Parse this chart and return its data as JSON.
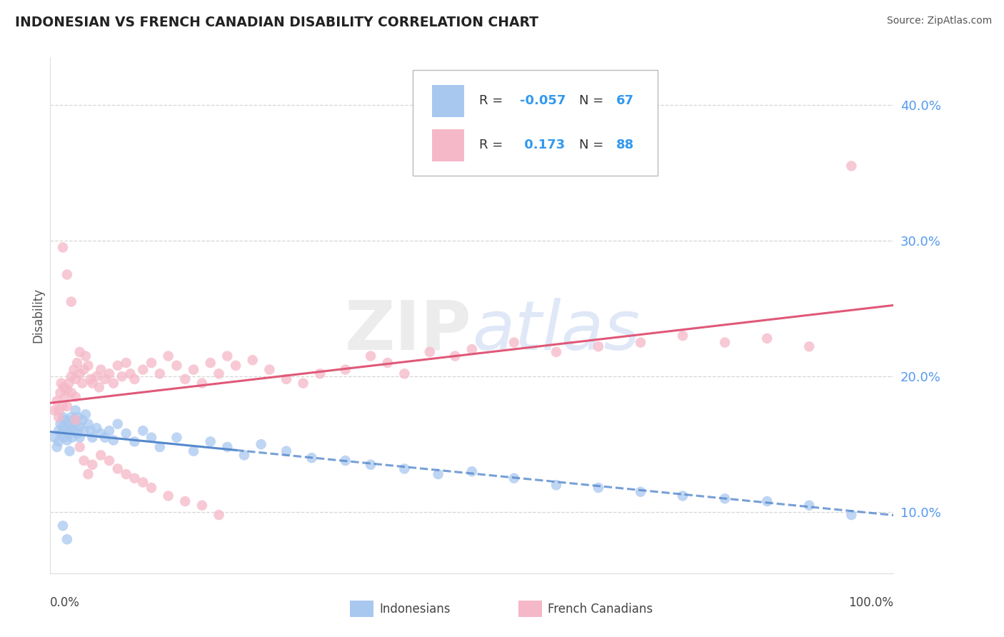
{
  "title": "INDONESIAN VS FRENCH CANADIAN DISABILITY CORRELATION CHART",
  "source": "Source: ZipAtlas.com",
  "ylabel": "Disability",
  "xlim": [
    0.0,
    1.0
  ],
  "ylim": [
    0.055,
    0.435
  ],
  "yticks": [
    0.1,
    0.2,
    0.3,
    0.4
  ],
  "ytick_labels": [
    "10.0%",
    "20.0%",
    "30.0%",
    "40.0%"
  ],
  "blue_color": "#A8C8F0",
  "pink_color": "#F5B8C8",
  "blue_line_color": "#5588CC",
  "pink_line_color": "#E05878",
  "grid_color": "#CCCCCC",
  "ind_x": [
    0.005,
    0.008,
    0.01,
    0.01,
    0.012,
    0.013,
    0.015,
    0.015,
    0.016,
    0.018,
    0.02,
    0.02,
    0.022,
    0.022,
    0.023,
    0.025,
    0.025,
    0.026,
    0.028,
    0.028,
    0.03,
    0.03,
    0.032,
    0.033,
    0.035,
    0.035,
    0.038,
    0.04,
    0.042,
    0.045,
    0.048,
    0.05,
    0.055,
    0.06,
    0.065,
    0.07,
    0.075,
    0.08,
    0.09,
    0.1,
    0.11,
    0.12,
    0.13,
    0.15,
    0.17,
    0.19,
    0.21,
    0.23,
    0.25,
    0.28,
    0.31,
    0.35,
    0.38,
    0.42,
    0.46,
    0.5,
    0.55,
    0.6,
    0.65,
    0.7,
    0.75,
    0.8,
    0.85,
    0.9,
    0.95,
    0.015,
    0.02
  ],
  "ind_y": [
    0.155,
    0.148,
    0.16,
    0.152,
    0.165,
    0.158,
    0.17,
    0.163,
    0.155,
    0.168,
    0.16,
    0.153,
    0.165,
    0.158,
    0.145,
    0.17,
    0.162,
    0.155,
    0.168,
    0.16,
    0.175,
    0.165,
    0.158,
    0.17,
    0.163,
    0.155,
    0.168,
    0.16,
    0.172,
    0.165,
    0.16,
    0.155,
    0.162,
    0.158,
    0.155,
    0.16,
    0.153,
    0.165,
    0.158,
    0.152,
    0.16,
    0.155,
    0.148,
    0.155,
    0.145,
    0.152,
    0.148,
    0.142,
    0.15,
    0.145,
    0.14,
    0.138,
    0.135,
    0.132,
    0.128,
    0.13,
    0.125,
    0.12,
    0.118,
    0.115,
    0.112,
    0.11,
    0.108,
    0.105,
    0.098,
    0.09,
    0.08
  ],
  "fc_x": [
    0.005,
    0.008,
    0.01,
    0.012,
    0.013,
    0.015,
    0.016,
    0.018,
    0.02,
    0.02,
    0.022,
    0.025,
    0.025,
    0.028,
    0.03,
    0.03,
    0.032,
    0.035,
    0.035,
    0.038,
    0.04,
    0.042,
    0.045,
    0.048,
    0.05,
    0.055,
    0.058,
    0.06,
    0.065,
    0.07,
    0.075,
    0.08,
    0.085,
    0.09,
    0.095,
    0.1,
    0.11,
    0.12,
    0.13,
    0.14,
    0.15,
    0.16,
    0.17,
    0.18,
    0.19,
    0.2,
    0.21,
    0.22,
    0.24,
    0.26,
    0.28,
    0.3,
    0.32,
    0.35,
    0.38,
    0.4,
    0.42,
    0.45,
    0.48,
    0.5,
    0.55,
    0.6,
    0.65,
    0.7,
    0.75,
    0.8,
    0.85,
    0.9,
    0.95,
    0.01,
    0.015,
    0.02,
    0.025,
    0.03,
    0.035,
    0.04,
    0.045,
    0.05,
    0.06,
    0.07,
    0.08,
    0.09,
    0.1,
    0.11,
    0.12,
    0.14,
    0.16,
    0.18,
    0.2
  ],
  "fc_y": [
    0.175,
    0.182,
    0.17,
    0.188,
    0.195,
    0.178,
    0.192,
    0.185,
    0.19,
    0.178,
    0.195,
    0.2,
    0.188,
    0.205,
    0.198,
    0.185,
    0.21,
    0.202,
    0.218,
    0.195,
    0.205,
    0.215,
    0.208,
    0.198,
    0.195,
    0.2,
    0.192,
    0.205,
    0.198,
    0.202,
    0.195,
    0.208,
    0.2,
    0.21,
    0.202,
    0.198,
    0.205,
    0.21,
    0.202,
    0.215,
    0.208,
    0.198,
    0.205,
    0.195,
    0.21,
    0.202,
    0.215,
    0.208,
    0.212,
    0.205,
    0.198,
    0.195,
    0.202,
    0.205,
    0.215,
    0.21,
    0.202,
    0.218,
    0.215,
    0.22,
    0.225,
    0.218,
    0.222,
    0.225,
    0.23,
    0.225,
    0.228,
    0.222,
    0.355,
    0.175,
    0.295,
    0.275,
    0.255,
    0.168,
    0.148,
    0.138,
    0.128,
    0.135,
    0.142,
    0.138,
    0.132,
    0.128,
    0.125,
    0.122,
    0.118,
    0.112,
    0.108,
    0.105,
    0.098
  ]
}
